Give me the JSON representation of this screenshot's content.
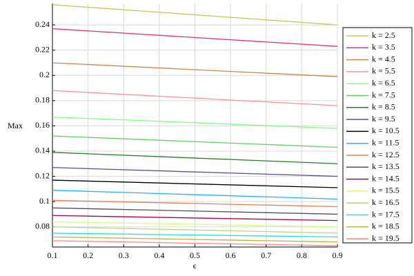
{
  "chart_data": {
    "type": "line",
    "x_label": "ϵ",
    "y_label": "Max",
    "xlim": [
      0.1,
      0.9
    ],
    "ylim": [
      0.064,
      0.257
    ],
    "xticks": [
      0.1,
      0.2,
      0.3,
      0.4,
      0.5,
      0.6,
      0.7,
      0.8,
      0.9
    ],
    "yticks": [
      0.08,
      0.1,
      0.12,
      0.14,
      0.16,
      0.18,
      0.2,
      0.22,
      0.24
    ],
    "grid": true,
    "legend": "right",
    "x": [
      0.1,
      0.9
    ],
    "series": [
      {
        "name": "k = 2.5",
        "color": "#c8c850",
        "values": [
          0.256,
          0.24
        ]
      },
      {
        "name": "k = 3.5",
        "color": "#e8306a",
        "values": [
          0.237,
          0.223
        ]
      },
      {
        "name": "k = 4.5",
        "color": "#c8864a",
        "values": [
          0.21,
          0.199
        ]
      },
      {
        "name": "k = 5.5",
        "color": "#ff9090",
        "values": [
          0.188,
          0.176
        ]
      },
      {
        "name": "k = 6.5",
        "color": "#80ff80",
        "values": [
          0.167,
          0.158
        ]
      },
      {
        "name": "k = 7.5",
        "color": "#60d060",
        "values": [
          0.152,
          0.143
        ]
      },
      {
        "name": "k = 8.5",
        "color": "#208020",
        "values": [
          0.139,
          0.13
        ]
      },
      {
        "name": "k = 9.5",
        "color": "#5050a0",
        "values": [
          0.127,
          0.12
        ]
      },
      {
        "name": "k = 10.5",
        "color": "#000000",
        "values": [
          0.117,
          0.111
        ]
      },
      {
        "name": "k = 11.5",
        "color": "#20b0ff",
        "values": [
          0.109,
          0.102
        ]
      },
      {
        "name": "k = 12.5",
        "color": "#e08050",
        "values": [
          0.101,
          0.096
        ]
      },
      {
        "name": "k = 13.5",
        "color": "#505050",
        "values": [
          0.095,
          0.09
        ]
      },
      {
        "name": "k = 14.5",
        "color": "#b00040",
        "values": [
          0.089,
          0.085
        ]
      },
      {
        "name": "k = 15.5",
        "color": "#d0ff80",
        "values": [
          0.084,
          0.08
        ]
      },
      {
        "name": "k = 16.5",
        "color": "#c0d080",
        "values": [
          0.08,
          0.075
        ]
      },
      {
        "name": "k = 17.5",
        "color": "#20e0e0",
        "values": [
          0.075,
          0.072
        ]
      },
      {
        "name": "k = 18.5",
        "color": "#c0b040",
        "values": [
          0.072,
          0.068
        ]
      },
      {
        "name": "k = 19.5",
        "color": "#ff8080",
        "values": [
          0.069,
          0.065
        ]
      }
    ]
  }
}
